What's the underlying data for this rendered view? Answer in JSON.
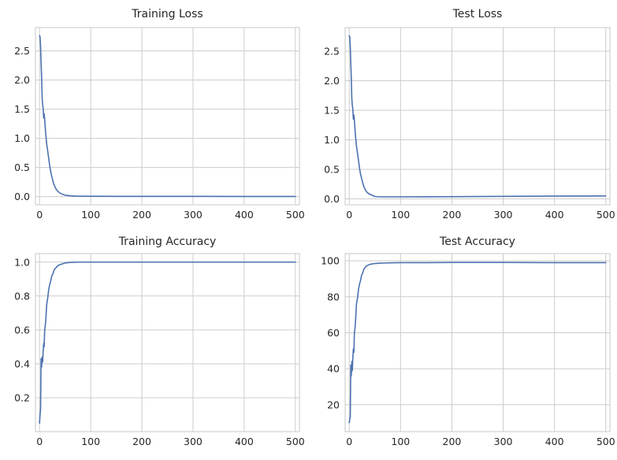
{
  "chart_data": [
    {
      "type": "line",
      "title": "Training Loss",
      "xlabel": "",
      "ylabel": "",
      "xlim": [
        -8,
        508
      ],
      "ylim": [
        -0.14,
        2.9
      ],
      "xticks": [
        0,
        100,
        200,
        300,
        400,
        500
      ],
      "yticks": [
        0.0,
        0.5,
        1.0,
        1.5,
        2.0,
        2.5
      ],
      "ytick_labels": [
        "0.0",
        "0.5",
        "1.0",
        "1.5",
        "2.0",
        "2.5"
      ],
      "grid": true,
      "legend": "none",
      "color": "#4c72b0",
      "series": [
        {
          "x": [
            0,
            1,
            2,
            3,
            4,
            5,
            6,
            7,
            8,
            9,
            10,
            11,
            12,
            14,
            16,
            18,
            20,
            22,
            24,
            26,
            28,
            30,
            33,
            36,
            40,
            45,
            50,
            60,
            70,
            80,
            100,
            150,
            200,
            300,
            400,
            500
          ],
          "values": [
            2.76,
            2.74,
            2.58,
            2.3,
            2.05,
            1.7,
            1.58,
            1.52,
            1.35,
            1.42,
            1.33,
            1.2,
            1.08,
            0.9,
            0.78,
            0.65,
            0.52,
            0.42,
            0.34,
            0.27,
            0.21,
            0.17,
            0.12,
            0.09,
            0.06,
            0.04,
            0.025,
            0.015,
            0.01,
            0.008,
            0.006,
            0.005,
            0.004,
            0.004,
            0.003,
            0.003
          ]
        }
      ]
    },
    {
      "type": "line",
      "title": "Test Loss",
      "xlabel": "",
      "ylabel": "",
      "xlim": [
        -8,
        508
      ],
      "ylim": [
        -0.1,
        2.9
      ],
      "xticks": [
        0,
        100,
        200,
        300,
        400,
        500
      ],
      "yticks": [
        0.0,
        0.5,
        1.0,
        1.5,
        2.0,
        2.5
      ],
      "ytick_labels": [
        "0.0",
        "0.5",
        "1.0",
        "1.5",
        "2.0",
        "2.5"
      ],
      "grid": true,
      "legend": "none",
      "color": "#4c72b0",
      "series": [
        {
          "x": [
            0,
            1,
            2,
            3,
            4,
            5,
            6,
            7,
            8,
            9,
            10,
            11,
            12,
            14,
            16,
            18,
            20,
            22,
            24,
            26,
            28,
            30,
            33,
            36,
            40,
            45,
            50,
            60,
            70,
            80,
            100,
            150,
            200,
            300,
            400,
            500
          ],
          "values": [
            2.76,
            2.74,
            2.58,
            2.3,
            2.05,
            1.7,
            1.58,
            1.52,
            1.35,
            1.42,
            1.33,
            1.2,
            1.08,
            0.9,
            0.78,
            0.65,
            0.52,
            0.42,
            0.35,
            0.28,
            0.22,
            0.18,
            0.13,
            0.1,
            0.08,
            0.06,
            0.04,
            0.035,
            0.035,
            0.035,
            0.035,
            0.036,
            0.038,
            0.042,
            0.047,
            0.05
          ]
        }
      ]
    },
    {
      "type": "line",
      "title": "Training Accuracy",
      "xlabel": "",
      "ylabel": "",
      "xlim": [
        -8,
        508
      ],
      "ylim": [
        0.0,
        1.05
      ],
      "xticks": [
        0,
        100,
        200,
        300,
        400,
        500
      ],
      "yticks": [
        0.2,
        0.4,
        0.6,
        0.8,
        1.0
      ],
      "ytick_labels": [
        "0.2",
        "0.4",
        "0.6",
        "0.8",
        "1.0"
      ],
      "grid": true,
      "legend": "none",
      "color": "#4c72b0",
      "series": [
        {
          "x": [
            0,
            1,
            2,
            3,
            4,
            5,
            6,
            7,
            8,
            9,
            10,
            11,
            12,
            14,
            16,
            18,
            20,
            22,
            24,
            26,
            28,
            30,
            33,
            36,
            40,
            45,
            50,
            60,
            70,
            80,
            100,
            150,
            200,
            300,
            400,
            500
          ],
          "values": [
            0.05,
            0.1,
            0.13,
            0.43,
            0.38,
            0.44,
            0.41,
            0.47,
            0.52,
            0.5,
            0.6,
            0.62,
            0.65,
            0.75,
            0.79,
            0.84,
            0.87,
            0.89,
            0.92,
            0.93,
            0.95,
            0.96,
            0.97,
            0.98,
            0.985,
            0.99,
            0.995,
            0.998,
            0.999,
            1.0,
            1.0,
            1.0,
            1.0,
            1.0,
            1.0,
            1.0
          ]
        }
      ]
    },
    {
      "type": "line",
      "title": "Test Accuracy",
      "xlabel": "",
      "ylabel": "",
      "xlim": [
        -8,
        508
      ],
      "ylim": [
        5,
        104
      ],
      "xticks": [
        0,
        100,
        200,
        300,
        400,
        500
      ],
      "yticks": [
        20,
        40,
        60,
        80,
        100
      ],
      "ytick_labels": [
        "20",
        "40",
        "60",
        "80",
        "100"
      ],
      "grid": true,
      "legend": "none",
      "color": "#4c72b0",
      "series": [
        {
          "x": [
            0,
            1,
            2,
            3,
            4,
            5,
            6,
            7,
            8,
            9,
            10,
            11,
            12,
            14,
            16,
            18,
            20,
            22,
            24,
            26,
            28,
            30,
            33,
            36,
            40,
            45,
            50,
            60,
            70,
            80,
            100,
            150,
            200,
            300,
            400,
            500
          ],
          "values": [
            10,
            12,
            13,
            42,
            36,
            44,
            39,
            46,
            51,
            49,
            60,
            62,
            65,
            76,
            79,
            84,
            87,
            89,
            92,
            93,
            95,
            96,
            97,
            97.5,
            98,
            98.3,
            98.5,
            98.7,
            98.8,
            98.9,
            99.0,
            99.0,
            99.1,
            99.1,
            99.0,
            99.0
          ]
        }
      ]
    }
  ]
}
